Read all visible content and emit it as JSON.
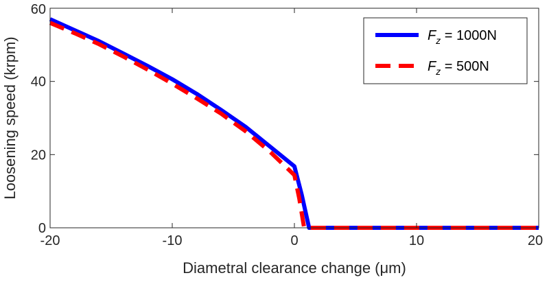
{
  "chart_data": {
    "type": "line",
    "title": "",
    "xlabel": "Diametral clearance change (μm)",
    "ylabel": "Loosening speed (krpm)",
    "xlim": [
      -20,
      20
    ],
    "ylim": [
      0,
      60
    ],
    "xticks": [
      "-20",
      "-10",
      "0",
      "10",
      "20"
    ],
    "xtick_values": [
      -20,
      -10,
      0,
      10,
      20
    ],
    "yticks": [
      "0",
      "20",
      "40",
      "60"
    ],
    "ytick_values": [
      0,
      20,
      40,
      60
    ],
    "grid": false,
    "legend_position": "top-right",
    "series": [
      {
        "name": "F_z = 1000N",
        "legend_main": "F",
        "legend_sub": "z",
        "legend_rest": " = 1000N",
        "color": "#0000ff",
        "style": "solid",
        "x": [
          -20,
          -18,
          -16,
          -14,
          -12,
          -10,
          -8,
          -6,
          -4,
          -2,
          0,
          0.6,
          1.2,
          2,
          4,
          8,
          12,
          16,
          20
        ],
        "y": [
          57,
          54,
          51,
          47.6,
          44.2,
          40.6,
          36.6,
          32.2,
          27.6,
          22.2,
          16.8,
          9,
          0,
          0,
          0,
          0,
          0,
          0,
          0
        ]
      },
      {
        "name": "F_z = 500N",
        "legend_main": "F",
        "legend_sub": "z",
        "legend_rest": " = 500N",
        "color": "#ff0000",
        "style": "dashed",
        "x": [
          -20,
          -18,
          -16,
          -14,
          -12,
          -10,
          -8,
          -6,
          -4,
          -2,
          0,
          0.4,
          0.8,
          2,
          4,
          8,
          12,
          16,
          20
        ],
        "y": [
          56,
          53.2,
          50.2,
          46.8,
          43.2,
          39.4,
          35.4,
          31.2,
          26.4,
          20.8,
          14.4,
          8,
          0,
          0,
          0,
          0,
          0,
          0,
          0
        ]
      }
    ]
  }
}
